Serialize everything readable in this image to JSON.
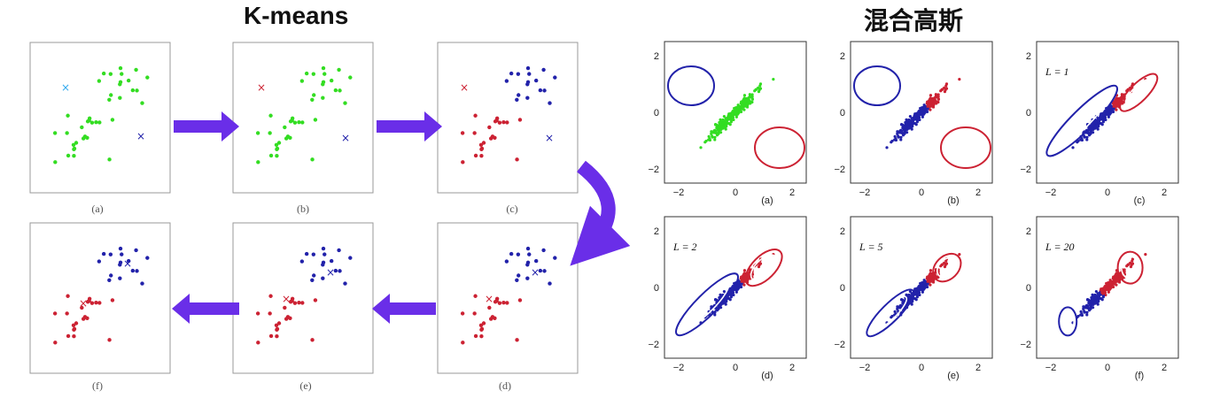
{
  "kmeans": {
    "title": "K-means",
    "panels": [
      {
        "caption": "(a)"
      },
      {
        "caption": "(b)"
      },
      {
        "caption": "(c)"
      },
      {
        "caption": "(d)"
      },
      {
        "caption": "(e)"
      },
      {
        "caption": "(f)"
      }
    ]
  },
  "gmm": {
    "title": "混合高斯",
    "ticks": [
      "−2",
      "0",
      "2"
    ],
    "panels": [
      {
        "caption": "(a)",
        "label": ""
      },
      {
        "caption": "(b)",
        "label": ""
      },
      {
        "caption": "(c)",
        "label": "L = 1"
      },
      {
        "caption": "(d)",
        "label": "L = 2"
      },
      {
        "caption": "(e)",
        "label": "L = 5"
      },
      {
        "caption": "(f)",
        "label": "L = 20"
      }
    ]
  },
  "colors": {
    "green": "#33dd22",
    "red": "#cc2233",
    "blue": "#2222aa",
    "arrow": "#6a2ee8"
  }
}
